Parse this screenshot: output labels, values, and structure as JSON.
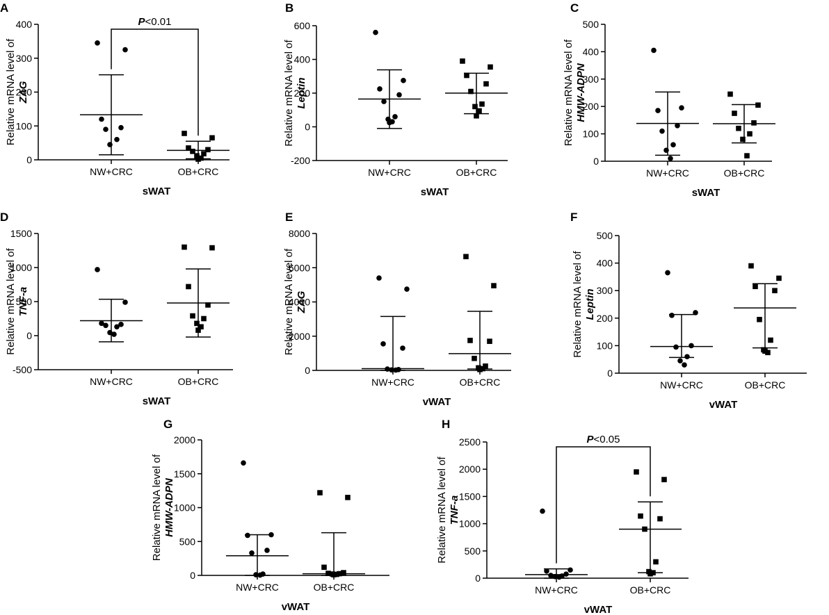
{
  "figure": {
    "group_names": [
      "NW+CRC",
      "OB+CRC"
    ],
    "ylabel_prefix": "Relative mRNA level of"
  },
  "chart_data": [
    {
      "panel": "A",
      "type": "scatter",
      "gene": "ZAG",
      "xlabel": "sWAT",
      "categories": [
        "NW+CRC",
        "OB+CRC"
      ],
      "ylim": [
        0,
        400
      ],
      "yticks": [
        0,
        100,
        200,
        300,
        400
      ],
      "significance": {
        "label_prefix": "P",
        "label_suffix": "<0.01"
      },
      "series": [
        {
          "name": "NW+CRC",
          "marker": "circle",
          "mean": 133,
          "sd_upper": 251,
          "sd_lower": 15,
          "points": [
            345,
            325,
            120,
            95,
            90,
            60,
            45
          ]
        },
        {
          "name": "OB+CRC",
          "marker": "square",
          "mean": 28,
          "sd_upper": 55,
          "sd_lower": 3,
          "points": [
            78,
            65,
            35,
            30,
            25,
            18,
            12,
            5,
            2
          ]
        }
      ]
    },
    {
      "panel": "B",
      "type": "scatter",
      "gene": "Leptin",
      "xlabel": "sWAT",
      "categories": [
        "NW+CRC",
        "OB+CRC"
      ],
      "ylim": [
        -200,
        600
      ],
      "yticks": [
        -200,
        0,
        200,
        400,
        600
      ],
      "series": [
        {
          "name": "NW+CRC",
          "marker": "circle",
          "mean": 165,
          "sd_upper": 338,
          "sd_lower": -10,
          "points": [
            560,
            275,
            225,
            190,
            150,
            60,
            45,
            30,
            25
          ]
        },
        {
          "name": "OB+CRC",
          "marker": "square",
          "mean": 200,
          "sd_upper": 318,
          "sd_lower": 78,
          "points": [
            390,
            355,
            305,
            255,
            210,
            135,
            120,
            95,
            65
          ]
        }
      ]
    },
    {
      "panel": "C",
      "type": "scatter",
      "gene": "HMW-ADPN",
      "xlabel": "sWAT",
      "categories": [
        "NW+CRC",
        "OB+CRC"
      ],
      "ylim": [
        0,
        500
      ],
      "yticks": [
        0,
        100,
        200,
        300,
        400,
        500
      ],
      "series": [
        {
          "name": "NW+CRC",
          "marker": "circle",
          "mean": 138,
          "sd_upper": 253,
          "sd_lower": 22,
          "points": [
            405,
            195,
            185,
            130,
            110,
            60,
            40,
            10
          ]
        },
        {
          "name": "OB+CRC",
          "marker": "square",
          "mean": 137,
          "sd_upper": 207,
          "sd_lower": 67,
          "points": [
            245,
            205,
            175,
            140,
            120,
            100,
            80,
            20
          ]
        }
      ]
    },
    {
      "panel": "D",
      "type": "scatter",
      "gene": "TNF-a",
      "xlabel": "sWAT",
      "categories": [
        "NW+CRC",
        "OB+CRC"
      ],
      "ylim": [
        -500,
        1500
      ],
      "yticks": [
        -500,
        0,
        500,
        1000,
        1500
      ],
      "series": [
        {
          "name": "NW+CRC",
          "marker": "circle",
          "mean": 220,
          "sd_upper": 535,
          "sd_lower": -90,
          "points": [
            970,
            490,
            180,
            165,
            150,
            130,
            45,
            20
          ]
        },
        {
          "name": "OB+CRC",
          "marker": "square",
          "mean": 480,
          "sd_upper": 980,
          "sd_lower": -20,
          "points": [
            1300,
            1290,
            720,
            450,
            290,
            250,
            180,
            130,
            80
          ]
        }
      ]
    },
    {
      "panel": "E",
      "type": "scatter",
      "gene": "ZAG",
      "xlabel": "vWAT",
      "categories": [
        "NW+CRC",
        "OB+CRC"
      ],
      "ylim": [
        0,
        8000
      ],
      "yticks": [
        0,
        2000,
        4000,
        6000,
        8000
      ],
      "series": [
        {
          "name": "NW+CRC",
          "marker": "circle",
          "mean": 100,
          "sd_upper": 3150,
          "sd_lower": 0,
          "points": [
            5400,
            4750,
            1550,
            1300,
            80,
            50,
            30,
            20
          ]
        },
        {
          "name": "OB+CRC",
          "marker": "square",
          "mean": 980,
          "sd_upper": 3450,
          "sd_lower": 80,
          "points": [
            6650,
            4950,
            1750,
            1700,
            700,
            250,
            150,
            100,
            50
          ]
        }
      ]
    },
    {
      "panel": "F",
      "type": "scatter",
      "gene": "Leptin",
      "xlabel": "vWAT",
      "categories": [
        "NW+CRC",
        "OB+CRC"
      ],
      "ylim": [
        0,
        500
      ],
      "yticks": [
        0,
        100,
        200,
        300,
        400,
        500
      ],
      "series": [
        {
          "name": "NW+CRC",
          "marker": "circle",
          "mean": 97,
          "sd_upper": 213,
          "sd_lower": 57,
          "points": [
            365,
            220,
            210,
            100,
            95,
            60,
            45,
            30
          ]
        },
        {
          "name": "OB+CRC",
          "marker": "square",
          "mean": 237,
          "sd_upper": 325,
          "sd_lower": 92,
          "points": [
            390,
            345,
            315,
            300,
            195,
            120,
            85,
            75,
            80
          ]
        }
      ]
    },
    {
      "panel": "G",
      "type": "scatter",
      "gene": "HMW-ADPN",
      "xlabel": "vWAT",
      "categories": [
        "NW+CRC",
        "OB+CRC"
      ],
      "ylim": [
        0,
        2000
      ],
      "yticks": [
        0,
        500,
        1000,
        1500,
        2000
      ],
      "series": [
        {
          "name": "NW+CRC",
          "marker": "circle",
          "mean": 290,
          "sd_upper": 600,
          "sd_lower": 0,
          "points": [
            1660,
            600,
            590,
            370,
            330,
            20,
            10,
            5
          ]
        },
        {
          "name": "OB+CRC",
          "marker": "square",
          "mean": 25,
          "sd_upper": 630,
          "sd_lower": 0,
          "points": [
            1220,
            1150,
            120,
            40,
            30,
            25,
            20,
            15,
            10
          ]
        }
      ]
    },
    {
      "panel": "H",
      "type": "scatter",
      "gene": "TNF-a",
      "xlabel": "vWAT",
      "categories": [
        "NW+CRC",
        "OB+CRC"
      ],
      "ylim": [
        0,
        2500
      ],
      "yticks": [
        0,
        500,
        1000,
        1500,
        2000,
        2500
      ],
      "significance": {
        "label_prefix": "P",
        "label_suffix": "<0.05"
      },
      "series": [
        {
          "name": "NW+CRC",
          "marker": "circle",
          "mean": 65,
          "sd_upper": 170,
          "sd_lower": 0,
          "points": [
            1230,
            150,
            130,
            75,
            50,
            40,
            30,
            20
          ]
        },
        {
          "name": "OB+CRC",
          "marker": "square",
          "mean": 900,
          "sd_upper": 1400,
          "sd_lower": 100,
          "points": [
            1950,
            1810,
            1140,
            1090,
            900,
            300,
            120,
            100,
            80
          ]
        }
      ]
    }
  ]
}
